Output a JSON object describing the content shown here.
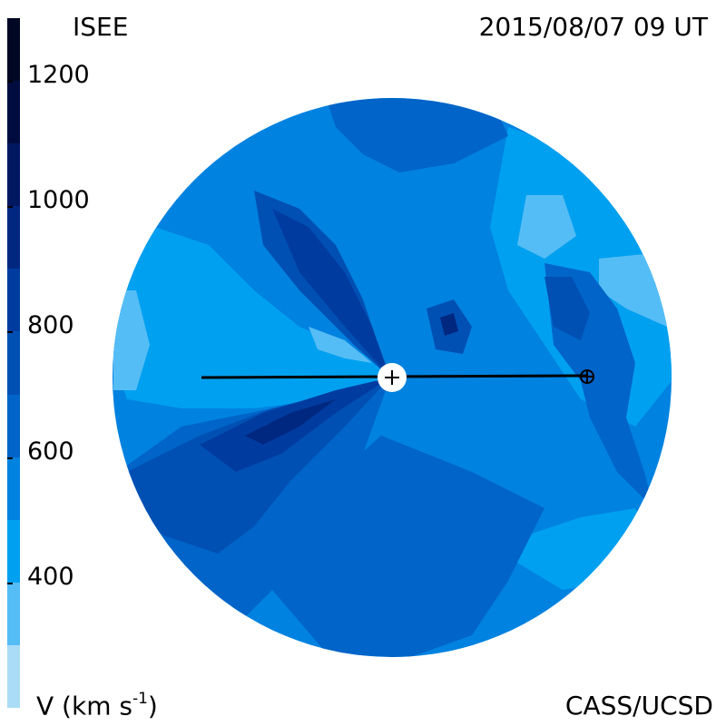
{
  "header": {
    "left_label": "ISEE",
    "right_label": "2015/08/07 09 UT"
  },
  "footer": {
    "left_label": "V (km s",
    "left_label_exp": "-1",
    "left_label_close": ")",
    "right_label": "CASS/UCSD"
  },
  "colorbar": {
    "tick_labels": [
      "1200",
      "1000",
      "800",
      "600",
      "400"
    ],
    "tick_values": [
      1200,
      1000,
      800,
      600,
      400
    ],
    "range": [
      200,
      1300
    ],
    "levels": [
      {
        "min": 200,
        "max": 300,
        "color": "#aadcf7"
      },
      {
        "min": 300,
        "max": 400,
        "color": "#55bdf5"
      },
      {
        "min": 400,
        "max": 500,
        "color": "#00a0f0"
      },
      {
        "min": 500,
        "max": 600,
        "color": "#0082e0"
      },
      {
        "min": 600,
        "max": 700,
        "color": "#0064c8"
      },
      {
        "min": 700,
        "max": 800,
        "color": "#0050b4"
      },
      {
        "min": 800,
        "max": 900,
        "color": "#003ca0"
      },
      {
        "min": 900,
        "max": 1000,
        "color": "#002880"
      },
      {
        "min": 1000,
        "max": 1100,
        "color": "#001860"
      },
      {
        "min": 1100,
        "max": 1200,
        "color": "#000c40"
      },
      {
        "min": 1200,
        "max": 1300,
        "color": "#000824"
      }
    ]
  },
  "map": {
    "colors": {
      "base": "#0082e0",
      "light": "#00a0f0",
      "lighter": "#55bdf5",
      "medium": "#0064c8",
      "dark": "#0050b4",
      "darker": "#003ca0",
      "darkest": "#002880",
      "marker": "#000000",
      "sun": "#ffffff"
    },
    "sun_marker": "sun-center-marker",
    "earth_marker": "earth-marker"
  }
}
